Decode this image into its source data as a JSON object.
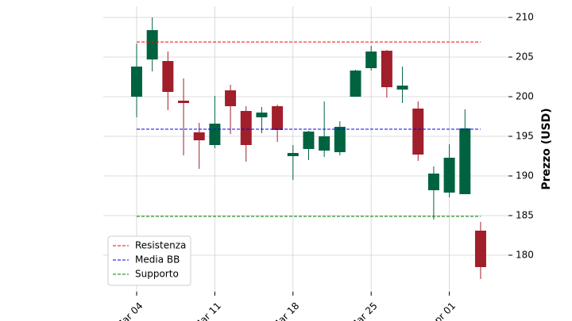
{
  "chart_data": {
    "type": "candlestick",
    "y_label": "Prezzo (USD)",
    "categories": [
      "Mar 04",
      null,
      null,
      null,
      null,
      "Mar 11",
      null,
      null,
      null,
      null,
      "Mar 18",
      null,
      null,
      null,
      null,
      "Mar 25",
      null,
      null,
      null,
      null,
      "Apr 01",
      null,
      null
    ],
    "open": [
      200.0,
      204.7,
      204.5,
      199.5,
      195.5,
      193.9,
      200.8,
      198.2,
      197.4,
      198.8,
      192.5,
      193.4,
      193.2,
      193.0,
      200.0,
      203.6,
      205.8,
      200.9,
      198.5,
      188.2,
      187.9,
      187.7,
      183.1
    ],
    "high": [
      206.7,
      210.0,
      205.7,
      202.3,
      196.7,
      200.1,
      201.5,
      198.8,
      198.7,
      199.0,
      193.9,
      195.7,
      199.4,
      196.9,
      203.4,
      206.4,
      205.9,
      203.8,
      199.4,
      191.2,
      194.0,
      198.4,
      184.2
    ],
    "low": [
      197.4,
      203.2,
      198.3,
      192.6,
      190.9,
      193.5,
      195.3,
      191.8,
      195.4,
      194.3,
      189.5,
      192.0,
      192.4,
      192.6,
      200.0,
      203.3,
      199.9,
      199.2,
      191.9,
      184.5,
      187.3,
      187.7,
      177.0
    ],
    "close": [
      203.8,
      208.4,
      200.6,
      199.2,
      194.5,
      196.6,
      198.8,
      193.9,
      198.0,
      195.8,
      192.9,
      195.6,
      195.0,
      196.2,
      203.3,
      205.7,
      201.2,
      201.4,
      192.7,
      190.3,
      192.3,
      196.0,
      178.5
    ],
    "up_color": "#006340",
    "down_color": "#a01f2b",
    "lines": [
      {
        "name": "Resistenza",
        "value": 206.9,
        "color": "#ff0000"
      },
      {
        "name": "Media BB",
        "value": 195.9,
        "color": "#0000ff"
      },
      {
        "name": "Supporto",
        "value": 184.9,
        "color": "#008000"
      }
    ],
    "ylim": [
      175.4,
      211.4
    ],
    "yticks": [
      180,
      185,
      190,
      195,
      200,
      205,
      210
    ],
    "grid": true,
    "legend": "lower left"
  }
}
